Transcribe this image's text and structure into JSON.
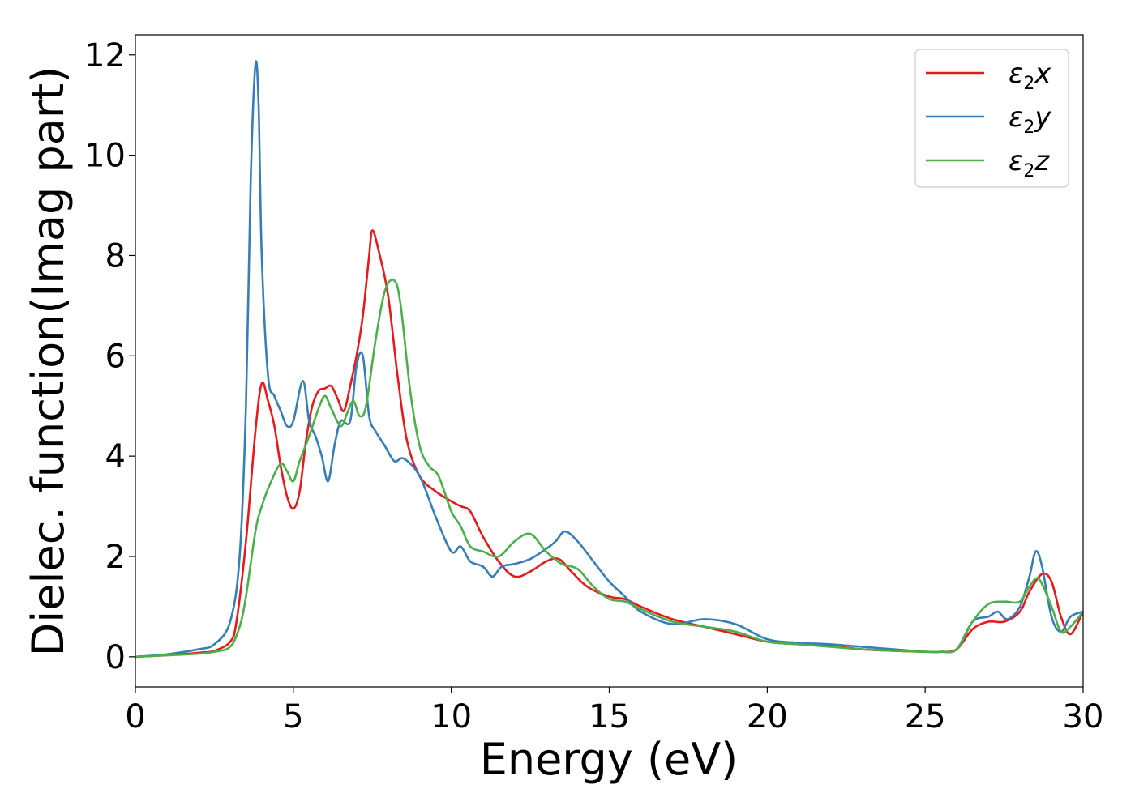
{
  "chart_data": {
    "type": "line",
    "xlabel": "Energy (eV)",
    "ylabel": "Dielec. function(Imag part)",
    "xlim": [
      0,
      30
    ],
    "ylim": [
      -0.6,
      12.4
    ],
    "xticks": [
      0,
      5,
      10,
      15,
      20,
      25,
      30
    ],
    "yticks": [
      0,
      2,
      4,
      6,
      8,
      10,
      12
    ],
    "grid": false,
    "legend_position": "top-right",
    "series": [
      {
        "name": "ε2x",
        "name_base": "ε",
        "name_sub": "2",
        "name_var": "x",
        "color": "#e41a1c",
        "x": [
          0,
          1,
          2,
          2.5,
          3,
          3.2,
          3.5,
          3.8,
          4.0,
          4.2,
          4.4,
          4.6,
          4.8,
          5.0,
          5.2,
          5.4,
          5.6,
          5.8,
          6.0,
          6.2,
          6.4,
          6.6,
          6.8,
          7.0,
          7.2,
          7.4,
          7.5,
          7.7,
          8.0,
          8.3,
          8.6,
          9.0,
          9.5,
          10.0,
          10.3,
          10.6,
          11.0,
          11.5,
          12.0,
          12.5,
          13.0,
          13.4,
          13.8,
          14.3,
          15.0,
          15.5,
          16.0,
          17.0,
          18.0,
          19.0,
          20.0,
          21.0,
          22.0,
          23.0,
          24.0,
          25.0,
          25.5,
          26.0,
          26.5,
          27.0,
          27.5,
          28.0,
          28.3,
          28.7,
          29.0,
          29.3,
          29.6,
          30.0
        ],
        "values": [
          0.0,
          0.03,
          0.08,
          0.12,
          0.3,
          0.7,
          2.3,
          4.5,
          5.45,
          5.1,
          4.6,
          3.8,
          3.2,
          2.95,
          3.3,
          4.3,
          5.0,
          5.3,
          5.35,
          5.4,
          5.15,
          4.9,
          5.4,
          6.0,
          6.8,
          8.0,
          8.5,
          8.1,
          7.2,
          5.6,
          4.3,
          3.6,
          3.3,
          3.1,
          3.0,
          2.9,
          2.4,
          1.9,
          1.6,
          1.7,
          1.9,
          1.95,
          1.7,
          1.4,
          1.2,
          1.15,
          1.0,
          0.75,
          0.6,
          0.45,
          0.3,
          0.25,
          0.22,
          0.15,
          0.12,
          0.1,
          0.1,
          0.15,
          0.55,
          0.7,
          0.7,
          0.9,
          1.3,
          1.65,
          1.5,
          0.8,
          0.45,
          0.9
        ]
      },
      {
        "name": "ε2y",
        "name_base": "ε",
        "name_sub": "2",
        "name_var": "y",
        "color": "#377eb8",
        "x": [
          0,
          1,
          2,
          2.5,
          3.0,
          3.3,
          3.5,
          3.65,
          3.8,
          3.9,
          4.0,
          4.2,
          4.4,
          4.6,
          4.8,
          5.0,
          5.3,
          5.5,
          5.7,
          5.9,
          6.1,
          6.3,
          6.5,
          6.8,
          7.0,
          7.2,
          7.4,
          7.6,
          7.9,
          8.2,
          8.5,
          9.0,
          9.5,
          10.0,
          10.3,
          10.6,
          11.0,
          11.3,
          11.6,
          12.0,
          12.5,
          13.0,
          13.3,
          13.6,
          14.0,
          14.5,
          15.0,
          15.5,
          16.0,
          17.0,
          18.0,
          19.0,
          20.0,
          21.0,
          22.0,
          23.0,
          24.0,
          25.0,
          25.5,
          26.0,
          26.5,
          27.0,
          27.3,
          27.6,
          28.0,
          28.3,
          28.5,
          28.7,
          29.0,
          29.3,
          29.6,
          30.0
        ],
        "values": [
          0.0,
          0.05,
          0.15,
          0.25,
          0.7,
          2.0,
          5.0,
          9.5,
          11.8,
          11.0,
          8.0,
          5.6,
          5.2,
          4.9,
          4.6,
          4.7,
          5.5,
          4.7,
          4.4,
          4.0,
          3.5,
          4.2,
          4.7,
          4.7,
          5.8,
          6.0,
          4.8,
          4.5,
          4.2,
          3.9,
          3.95,
          3.6,
          2.8,
          2.1,
          2.2,
          1.9,
          1.8,
          1.6,
          1.8,
          1.85,
          1.95,
          2.15,
          2.3,
          2.5,
          2.3,
          1.9,
          1.5,
          1.2,
          0.9,
          0.65,
          0.75,
          0.65,
          0.35,
          0.28,
          0.25,
          0.2,
          0.15,
          0.1,
          0.1,
          0.15,
          0.7,
          0.8,
          0.9,
          0.75,
          1.0,
          1.6,
          2.1,
          1.8,
          0.8,
          0.5,
          0.8,
          0.9
        ]
      },
      {
        "name": "ε2z",
        "name_base": "ε",
        "name_sub": "2",
        "name_var": "z",
        "color": "#4daf4a",
        "x": [
          0,
          1,
          2,
          2.5,
          3.0,
          3.3,
          3.5,
          3.8,
          4.0,
          4.3,
          4.6,
          4.8,
          5.0,
          5.2,
          5.5,
          5.8,
          6.0,
          6.2,
          6.5,
          6.7,
          6.9,
          7.1,
          7.3,
          7.6,
          7.9,
          8.2,
          8.4,
          8.7,
          9.0,
          9.3,
          9.6,
          10.0,
          10.3,
          10.6,
          11.0,
          11.5,
          12.0,
          12.5,
          13.0,
          13.5,
          14.0,
          14.5,
          15.0,
          15.5,
          16.0,
          17.0,
          18.0,
          19.0,
          20.0,
          21.0,
          22.0,
          23.0,
          24.0,
          25.0,
          25.5,
          26.0,
          26.5,
          27.0,
          27.5,
          28.0,
          28.3,
          28.6,
          29.0,
          29.3,
          29.6,
          30.0
        ],
        "values": [
          0.0,
          0.03,
          0.06,
          0.1,
          0.2,
          0.6,
          1.2,
          2.5,
          3.0,
          3.5,
          3.85,
          3.7,
          3.5,
          3.9,
          4.4,
          4.95,
          5.2,
          4.95,
          4.6,
          4.85,
          5.1,
          4.8,
          5.0,
          6.3,
          7.3,
          7.5,
          7.0,
          5.3,
          4.2,
          3.8,
          3.6,
          2.9,
          2.6,
          2.2,
          2.1,
          2.0,
          2.3,
          2.45,
          2.1,
          1.85,
          1.75,
          1.4,
          1.15,
          1.1,
          0.95,
          0.7,
          0.6,
          0.5,
          0.3,
          0.25,
          0.2,
          0.15,
          0.12,
          0.1,
          0.1,
          0.15,
          0.7,
          1.05,
          1.1,
          1.1,
          1.4,
          1.55,
          1.0,
          0.5,
          0.6,
          0.9
        ]
      }
    ]
  }
}
